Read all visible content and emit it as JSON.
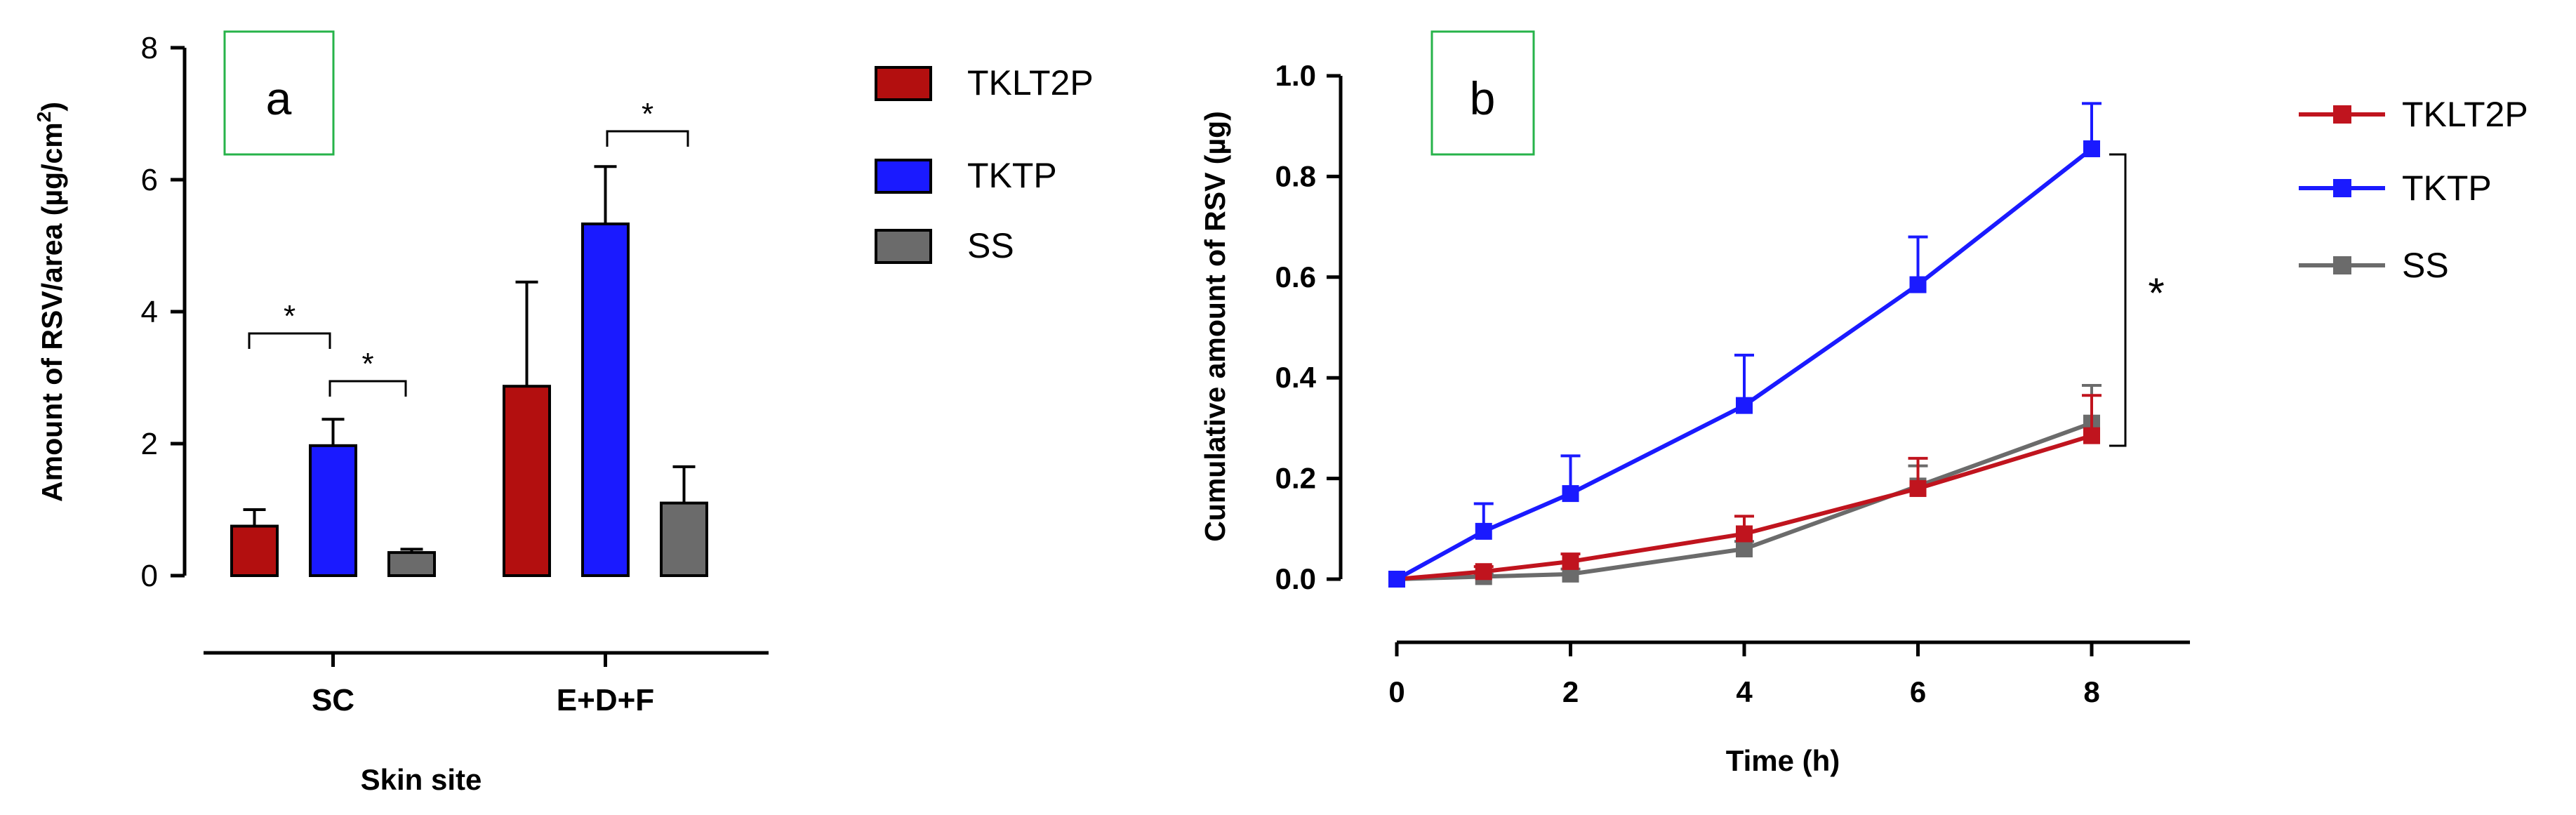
{
  "chart_data": [
    {
      "panel": "a",
      "type": "bar",
      "xlabel": "Skin site",
      "ylabel": "Amount of RSV/area (µg/cm²)",
      "ylabel_main": "Amount of RSV/area (µg/cm",
      "ylabel_sup": "2",
      "ylabel_end": ")",
      "ylim": [
        0,
        8
      ],
      "yticks": [
        "0",
        "2",
        "4",
        "6",
        "8"
      ],
      "categories": [
        "SC",
        "E+D+F"
      ],
      "series": [
        {
          "name": "TKLT2P",
          "color": "#b30f0f",
          "values": [
            0.75,
            2.87
          ],
          "errors": [
            0.25,
            1.58
          ]
        },
        {
          "name": "TKTP",
          "color": "#1a1aff",
          "values": [
            1.97,
            5.33
          ],
          "errors": [
            0.4,
            0.87
          ]
        },
        {
          "name": "SS",
          "color": "#6b6b6b",
          "values": [
            0.35,
            1.1
          ],
          "errors": [
            0.05,
            0.55
          ]
        }
      ],
      "annotations": [
        "*",
        "*",
        "*"
      ],
      "legend": "right"
    },
    {
      "panel": "b",
      "type": "line",
      "xlabel": "Time (h)",
      "ylabel": "Cumulative amount of RSV (µg)",
      "xlim": [
        0,
        8
      ],
      "ylim": [
        0,
        1.0
      ],
      "xticks": [
        "0",
        "2",
        "4",
        "6",
        "8"
      ],
      "yticks": [
        "0.0",
        "0.2",
        "0.4",
        "0.6",
        "0.8",
        "1.0"
      ],
      "x": [
        0,
        1,
        2,
        4,
        6,
        8
      ],
      "series": [
        {
          "name": "TKLT2P",
          "color": "#c0141e",
          "values": [
            0.0,
            0.015,
            0.035,
            0.09,
            0.18,
            0.285
          ],
          "errors": [
            0,
            0.01,
            0.015,
            0.035,
            0.06,
            0.08
          ]
        },
        {
          "name": "TKTP",
          "color": "#1a1aff",
          "values": [
            0.0,
            0.095,
            0.17,
            0.345,
            0.585,
            0.855
          ],
          "errors": [
            0,
            0.055,
            0.075,
            0.1,
            0.095,
            0.09
          ]
        },
        {
          "name": "SS",
          "color": "#6b6b6b",
          "values": [
            0.0,
            0.005,
            0.01,
            0.06,
            0.185,
            0.31
          ],
          "errors": [
            0,
            0.005,
            0.01,
            0.015,
            0.04,
            0.075
          ]
        }
      ],
      "annotations": [
        "*"
      ],
      "legend": "right"
    }
  ]
}
